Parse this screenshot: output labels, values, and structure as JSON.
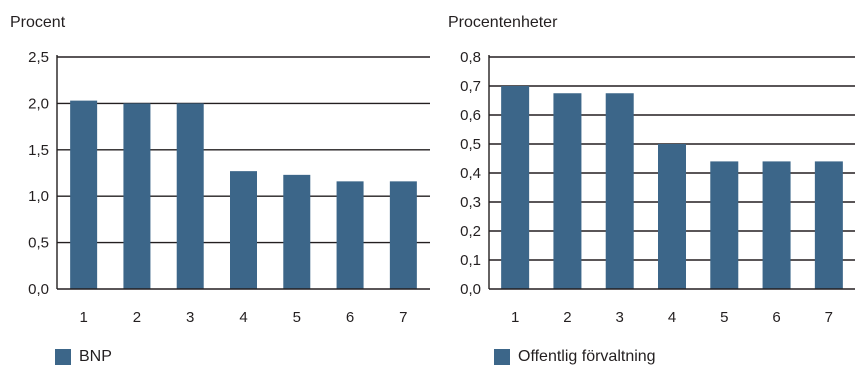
{
  "chart_data": [
    {
      "type": "bar",
      "ylabel": "Procent",
      "categories": [
        "1",
        "2",
        "3",
        "4",
        "5",
        "6",
        "7"
      ],
      "series": [
        {
          "name": "BNP",
          "values": [
            2.03,
            2.0,
            2.0,
            1.27,
            1.23,
            1.16,
            1.16
          ]
        }
      ],
      "ylim": [
        0,
        2.5
      ],
      "yticks": [
        "0,0",
        "0,5",
        "1,0",
        "1,5",
        "2,0",
        "2,5"
      ],
      "grid": true,
      "legend": "bottom-left",
      "color": "#3c6689"
    },
    {
      "type": "bar",
      "ylabel": "Procentenheter",
      "categories": [
        "1",
        "2",
        "3",
        "4",
        "5",
        "6",
        "7"
      ],
      "series": [
        {
          "name": "Offentlig förvaltning",
          "values": [
            0.7,
            0.675,
            0.675,
            0.5,
            0.44,
            0.44,
            0.44
          ]
        }
      ],
      "ylim": [
        0,
        0.8
      ],
      "yticks": [
        "0,0",
        "0,1",
        "0,2",
        "0,3",
        "0,4",
        "0,5",
        "0,6",
        "0,7",
        "0,8"
      ],
      "grid": true,
      "legend": "bottom-left",
      "color": "#3c6689"
    }
  ]
}
